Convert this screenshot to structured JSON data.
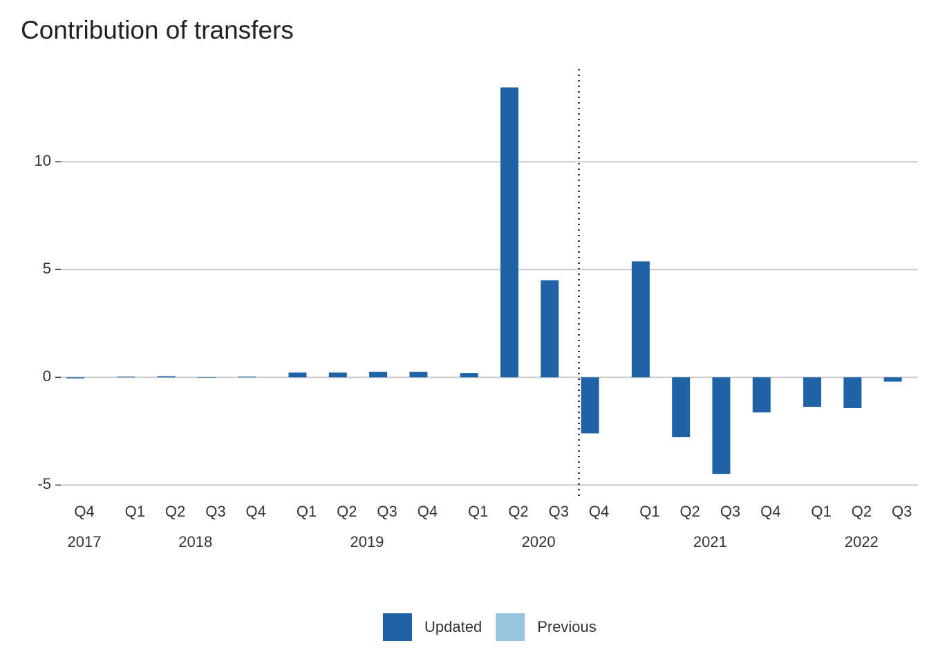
{
  "chart_data": {
    "type": "bar",
    "title": "Contribution of transfers",
    "groups": [
      {
        "year": "2017",
        "quarters": [
          "Q4"
        ]
      },
      {
        "year": "2018",
        "quarters": [
          "Q1",
          "Q2",
          "Q3",
          "Q4"
        ]
      },
      {
        "year": "2019",
        "quarters": [
          "Q1",
          "Q2",
          "Q3",
          "Q4"
        ]
      },
      {
        "year": "2020",
        "quarters": [
          "Q1",
          "Q2",
          "Q3",
          "Q4"
        ]
      },
      {
        "year": "2021",
        "quarters": [
          "Q1",
          "Q2",
          "Q3",
          "Q4"
        ]
      },
      {
        "year": "2022",
        "quarters": [
          "Q1",
          "Q2",
          "Q3"
        ]
      }
    ],
    "series": [
      {
        "name": "Updated",
        "color": "#1f63a6",
        "values": [
          -0.05,
          0.03,
          0.05,
          -0.02,
          0.03,
          0.22,
          0.22,
          0.25,
          0.25,
          0.2,
          13.45,
          4.5,
          -2.6,
          5.38,
          -2.78,
          -4.48,
          -1.63,
          -1.37,
          -1.43,
          -0.2
        ]
      },
      {
        "name": "Previous",
        "color": "#98c4de",
        "values": [
          null,
          null,
          null,
          null,
          null,
          null,
          null,
          null,
          null,
          null,
          null,
          null,
          null,
          null,
          null,
          null,
          null,
          null,
          null,
          null
        ]
      }
    ],
    "ylim": [
      -5.5,
      14.3
    ],
    "yticks": [
      -5,
      0,
      5,
      10
    ],
    "grid": true
  }
}
